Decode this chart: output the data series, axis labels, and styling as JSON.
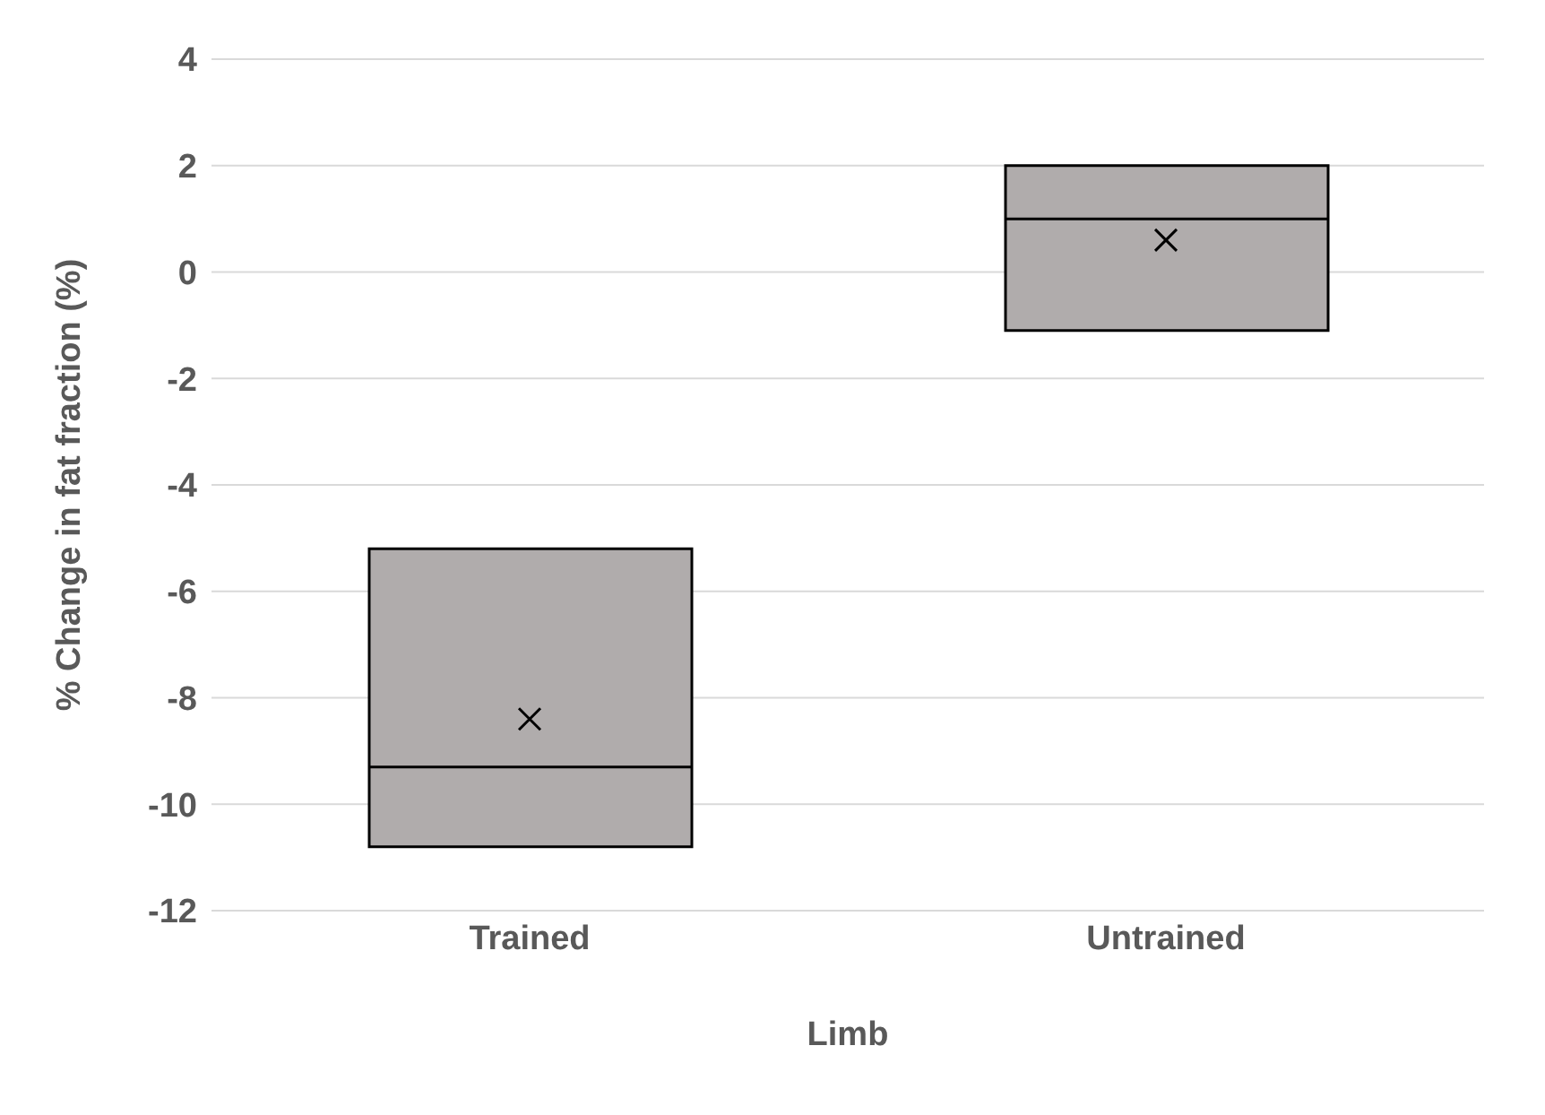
{
  "chart_data": {
    "type": "box",
    "categories": [
      "Trained",
      "Untrained"
    ],
    "xlabel": "Limb",
    "ylabel": "% Change in fat fraction (%)",
    "ylim": [
      -12,
      4
    ],
    "yticks": [
      -12,
      -10,
      -8,
      -6,
      -4,
      -2,
      0,
      2,
      4
    ],
    "grid": "y",
    "color": "#b0acac",
    "marker": "cross",
    "boxes": [
      {
        "low": -10.8,
        "q1": -10.8,
        "median": -9.3,
        "q3": -5.2,
        "high": -5.2,
        "mean": -8.4
      },
      {
        "low": -1.1,
        "q1": -1.1,
        "median": 1.0,
        "q3": 2.0,
        "high": 2.0,
        "mean": 0.6
      }
    ]
  }
}
